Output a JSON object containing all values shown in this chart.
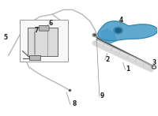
{
  "bg_color": "#ffffff",
  "part_color_gray": "#b8b8b8",
  "part_color_blue": "#4a9cc7",
  "part_color_dark": "#555555",
  "part_color_light": "#d8d8d8",
  "label_color": "#222222",
  "box_border": "#999999",
  "figsize": [
    2.0,
    1.47
  ],
  "dpi": 100
}
